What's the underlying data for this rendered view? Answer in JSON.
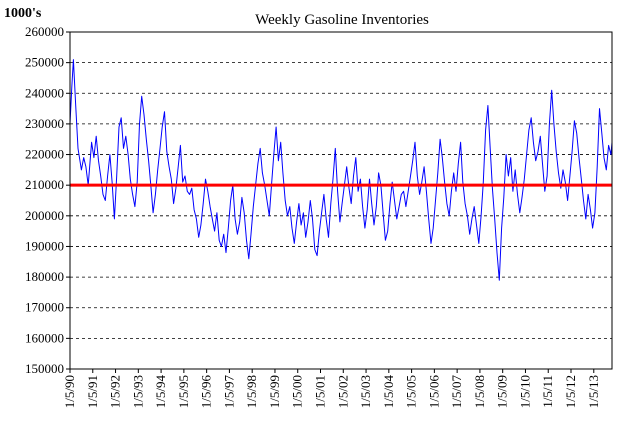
{
  "chart_data": {
    "type": "line",
    "title": "Weekly Gasoline Inventories",
    "ylabel": "1000's",
    "xlabel": "",
    "ylim": [
      150000,
      260000
    ],
    "yticks": [
      150000,
      160000,
      170000,
      180000,
      190000,
      200000,
      210000,
      220000,
      230000,
      240000,
      250000,
      260000
    ],
    "xticks": [
      "1/5/90",
      "1/5/91",
      "1/5/92",
      "1/5/93",
      "1/5/94",
      "1/5/95",
      "1/5/96",
      "1/5/97",
      "1/5/98",
      "1/5/99",
      "1/5/00",
      "1/5/01",
      "1/5/02",
      "1/5/03",
      "1/5/04",
      "1/5/05",
      "1/5/06",
      "1/5/07",
      "1/5/08",
      "1/5/09",
      "1/5/10",
      "1/5/11",
      "1/5/12",
      "1/5/13"
    ],
    "xrange_years": [
      1990.0,
      2013.8
    ],
    "grid": true,
    "reference_line": {
      "value": 210000,
      "color": "#ff0000"
    },
    "series": [
      {
        "color": "#0000ff",
        "points": [
          [
            1990.0,
            230000
          ],
          [
            1990.08,
            242000
          ],
          [
            1990.15,
            251000
          ],
          [
            1990.25,
            236000
          ],
          [
            1990.35,
            222000
          ],
          [
            1990.5,
            215000
          ],
          [
            1990.6,
            219000
          ],
          [
            1990.7,
            216000
          ],
          [
            1990.8,
            210000
          ],
          [
            1990.95,
            224000
          ],
          [
            1991.05,
            219000
          ],
          [
            1991.15,
            226000
          ],
          [
            1991.25,
            218000
          ],
          [
            1991.35,
            213000
          ],
          [
            1991.45,
            207000
          ],
          [
            1991.55,
            205000
          ],
          [
            1991.65,
            213000
          ],
          [
            1991.75,
            220000
          ],
          [
            1991.85,
            211000
          ],
          [
            1991.95,
            199000
          ],
          [
            1992.05,
            213000
          ],
          [
            1992.15,
            229000
          ],
          [
            1992.25,
            232000
          ],
          [
            1992.35,
            222000
          ],
          [
            1992.45,
            226000
          ],
          [
            1992.55,
            220000
          ],
          [
            1992.65,
            212000
          ],
          [
            1992.75,
            207000
          ],
          [
            1992.85,
            203000
          ],
          [
            1992.95,
            211000
          ],
          [
            1993.05,
            230000
          ],
          [
            1993.15,
            239000
          ],
          [
            1993.25,
            233000
          ],
          [
            1993.35,
            225000
          ],
          [
            1993.45,
            218000
          ],
          [
            1993.55,
            210000
          ],
          [
            1993.65,
            201000
          ],
          [
            1993.75,
            207000
          ],
          [
            1993.85,
            215000
          ],
          [
            1993.95,
            222000
          ],
          [
            1994.05,
            229000
          ],
          [
            1994.15,
            234000
          ],
          [
            1994.25,
            221000
          ],
          [
            1994.35,
            216000
          ],
          [
            1994.45,
            212000
          ],
          [
            1994.55,
            204000
          ],
          [
            1994.65,
            209000
          ],
          [
            1994.75,
            216000
          ],
          [
            1994.85,
            223000
          ],
          [
            1994.95,
            211000
          ],
          [
            1995.05,
            213000
          ],
          [
            1995.15,
            208000
          ],
          [
            1995.25,
            207000
          ],
          [
            1995.35,
            209000
          ],
          [
            1995.45,
            202000
          ],
          [
            1995.55,
            199000
          ],
          [
            1995.65,
            193000
          ],
          [
            1995.75,
            197000
          ],
          [
            1995.85,
            204000
          ],
          [
            1995.95,
            212000
          ],
          [
            1996.05,
            208000
          ],
          [
            1996.15,
            203000
          ],
          [
            1996.25,
            199000
          ],
          [
            1996.35,
            195000
          ],
          [
            1996.45,
            201000
          ],
          [
            1996.55,
            192000
          ],
          [
            1996.65,
            190000
          ],
          [
            1996.75,
            194000
          ],
          [
            1996.85,
            188000
          ],
          [
            1996.95,
            196000
          ],
          [
            1997.05,
            205000
          ],
          [
            1997.15,
            210000
          ],
          [
            1997.25,
            199000
          ],
          [
            1997.35,
            194000
          ],
          [
            1997.45,
            198000
          ],
          [
            1997.55,
            206000
          ],
          [
            1997.65,
            201000
          ],
          [
            1997.75,
            192000
          ],
          [
            1997.85,
            186000
          ],
          [
            1997.95,
            194000
          ],
          [
            1998.05,
            203000
          ],
          [
            1998.15,
            210000
          ],
          [
            1998.25,
            217000
          ],
          [
            1998.35,
            222000
          ],
          [
            1998.45,
            214000
          ],
          [
            1998.55,
            210000
          ],
          [
            1998.65,
            205000
          ],
          [
            1998.75,
            200000
          ],
          [
            1998.85,
            210000
          ],
          [
            1998.95,
            220000
          ],
          [
            1999.05,
            229000
          ],
          [
            1999.15,
            218000
          ],
          [
            1999.25,
            224000
          ],
          [
            1999.35,
            214000
          ],
          [
            1999.45,
            205000
          ],
          [
            1999.55,
            200000
          ],
          [
            1999.65,
            203000
          ],
          [
            1999.75,
            196000
          ],
          [
            1999.85,
            191000
          ],
          [
            1999.95,
            198000
          ],
          [
            2000.05,
            204000
          ],
          [
            2000.15,
            197000
          ],
          [
            2000.25,
            201000
          ],
          [
            2000.35,
            193000
          ],
          [
            2000.45,
            198000
          ],
          [
            2000.55,
            205000
          ],
          [
            2000.65,
            199000
          ],
          [
            2000.75,
            189000
          ],
          [
            2000.85,
            187000
          ],
          [
            2000.95,
            195000
          ],
          [
            2001.05,
            201000
          ],
          [
            2001.15,
            207000
          ],
          [
            2001.25,
            199000
          ],
          [
            2001.35,
            193000
          ],
          [
            2001.45,
            204000
          ],
          [
            2001.55,
            212000
          ],
          [
            2001.65,
            222000
          ],
          [
            2001.75,
            208000
          ],
          [
            2001.85,
            198000
          ],
          [
            2001.95,
            204000
          ],
          [
            2002.05,
            210000
          ],
          [
            2002.15,
            216000
          ],
          [
            2002.25,
            209000
          ],
          [
            2002.35,
            204000
          ],
          [
            2002.45,
            213000
          ],
          [
            2002.55,
            219000
          ],
          [
            2002.65,
            208000
          ],
          [
            2002.75,
            212000
          ],
          [
            2002.85,
            203000
          ],
          [
            2002.95,
            196000
          ],
          [
            2003.05,
            202000
          ],
          [
            2003.15,
            212000
          ],
          [
            2003.25,
            204000
          ],
          [
            2003.35,
            197000
          ],
          [
            2003.45,
            203000
          ],
          [
            2003.55,
            214000
          ],
          [
            2003.65,
            210000
          ],
          [
            2003.75,
            201000
          ],
          [
            2003.85,
            192000
          ],
          [
            2003.95,
            195000
          ],
          [
            2004.05,
            204000
          ],
          [
            2004.15,
            211000
          ],
          [
            2004.25,
            205000
          ],
          [
            2004.35,
            199000
          ],
          [
            2004.45,
            203000
          ],
          [
            2004.55,
            207000
          ],
          [
            2004.65,
            208000
          ],
          [
            2004.75,
            203000
          ],
          [
            2004.85,
            208000
          ],
          [
            2004.95,
            213000
          ],
          [
            2005.05,
            218000
          ],
          [
            2005.15,
            224000
          ],
          [
            2005.25,
            213000
          ],
          [
            2005.35,
            207000
          ],
          [
            2005.45,
            211000
          ],
          [
            2005.55,
            216000
          ],
          [
            2005.65,
            208000
          ],
          [
            2005.75,
            199000
          ],
          [
            2005.85,
            191000
          ],
          [
            2005.95,
            196000
          ],
          [
            2006.05,
            205000
          ],
          [
            2006.15,
            214000
          ],
          [
            2006.25,
            225000
          ],
          [
            2006.35,
            219000
          ],
          [
            2006.45,
            211000
          ],
          [
            2006.55,
            204000
          ],
          [
            2006.65,
            200000
          ],
          [
            2006.75,
            208000
          ],
          [
            2006.85,
            214000
          ],
          [
            2006.95,
            208000
          ],
          [
            2007.05,
            217000
          ],
          [
            2007.15,
            224000
          ],
          [
            2007.25,
            211000
          ],
          [
            2007.35,
            204000
          ],
          [
            2007.45,
            200000
          ],
          [
            2007.55,
            194000
          ],
          [
            2007.65,
            199000
          ],
          [
            2007.75,
            203000
          ],
          [
            2007.85,
            197000
          ],
          [
            2007.95,
            191000
          ],
          [
            2008.05,
            200000
          ],
          [
            2008.15,
            211000
          ],
          [
            2008.25,
            228000
          ],
          [
            2008.35,
            236000
          ],
          [
            2008.45,
            222000
          ],
          [
            2008.55,
            209000
          ],
          [
            2008.65,
            199000
          ],
          [
            2008.75,
            188000
          ],
          [
            2008.85,
            179000
          ],
          [
            2008.95,
            196000
          ],
          [
            2009.05,
            206000
          ],
          [
            2009.15,
            220000
          ],
          [
            2009.25,
            213000
          ],
          [
            2009.35,
            219000
          ],
          [
            2009.45,
            208000
          ],
          [
            2009.55,
            215000
          ],
          [
            2009.65,
            207000
          ],
          [
            2009.75,
            201000
          ],
          [
            2009.85,
            206000
          ],
          [
            2009.95,
            212000
          ],
          [
            2010.05,
            220000
          ],
          [
            2010.15,
            228000
          ],
          [
            2010.25,
            232000
          ],
          [
            2010.35,
            224000
          ],
          [
            2010.45,
            218000
          ],
          [
            2010.55,
            221000
          ],
          [
            2010.65,
            226000
          ],
          [
            2010.75,
            217000
          ],
          [
            2010.85,
            208000
          ],
          [
            2010.95,
            213000
          ],
          [
            2011.05,
            230000
          ],
          [
            2011.15,
            241000
          ],
          [
            2011.25,
            230000
          ],
          [
            2011.35,
            221000
          ],
          [
            2011.45,
            214000
          ],
          [
            2011.55,
            209000
          ],
          [
            2011.65,
            215000
          ],
          [
            2011.75,
            211000
          ],
          [
            2011.85,
            205000
          ],
          [
            2011.95,
            213000
          ],
          [
            2012.05,
            221000
          ],
          [
            2012.15,
            231000
          ],
          [
            2012.25,
            227000
          ],
          [
            2012.35,
            219000
          ],
          [
            2012.45,
            212000
          ],
          [
            2012.55,
            205000
          ],
          [
            2012.65,
            199000
          ],
          [
            2012.75,
            207000
          ],
          [
            2012.85,
            202000
          ],
          [
            2012.95,
            196000
          ],
          [
            2013.05,
            201000
          ],
          [
            2013.15,
            216000
          ],
          [
            2013.25,
            235000
          ],
          [
            2013.35,
            227000
          ],
          [
            2013.45,
            219000
          ],
          [
            2013.55,
            215000
          ],
          [
            2013.65,
            223000
          ],
          [
            2013.75,
            220000
          ],
          [
            2013.8,
            224000
          ]
        ]
      }
    ]
  }
}
